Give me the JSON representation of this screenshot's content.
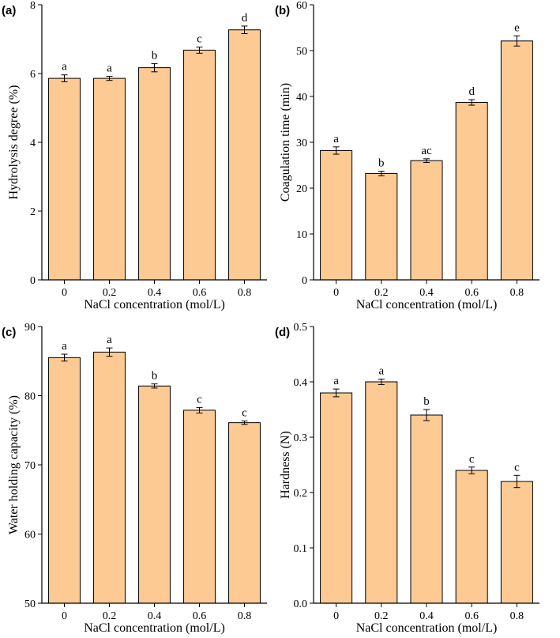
{
  "chart_data": [
    {
      "panel_label": "(a)",
      "type": "bar",
      "categories": [
        "0",
        "0.2",
        "0.4",
        "0.6",
        "0.8"
      ],
      "values": [
        5.86,
        5.86,
        6.17,
        6.68,
        7.27
      ],
      "errors": [
        0.1,
        0.06,
        0.12,
        0.09,
        0.11
      ],
      "sig_labels": [
        "a",
        "a",
        "b",
        "c",
        "d"
      ],
      "xlabel": "NaCl concentration (mol/L)",
      "ylabel": "Hydrolysis degree (%)",
      "ylim": [
        0,
        8
      ],
      "yticks": [
        0,
        2,
        4,
        6,
        8
      ],
      "ytick_labels": [
        "0",
        "2",
        "4",
        "6",
        "8"
      ],
      "bar_color": "#FDCA94"
    },
    {
      "panel_label": "(b)",
      "type": "bar",
      "categories": [
        "0",
        "0.2",
        "0.4",
        "0.6",
        "0.8"
      ],
      "values": [
        28.2,
        23.2,
        26.0,
        38.7,
        52.1
      ],
      "errors": [
        0.8,
        0.5,
        0.4,
        0.6,
        1.1
      ],
      "sig_labels": [
        "a",
        "b",
        "ac",
        "d",
        "e"
      ],
      "xlabel": "NaCl concentration (mol/L)",
      "ylabel": "Coagulation time (min)",
      "ylim": [
        0,
        60
      ],
      "yticks": [
        0,
        10,
        20,
        30,
        40,
        50,
        60
      ],
      "ytick_labels": [
        "0",
        "10",
        "20",
        "30",
        "40",
        "50",
        "60"
      ],
      "bar_color": "#FDCA94"
    },
    {
      "panel_label": "(c)",
      "type": "bar",
      "categories": [
        "0",
        "0.2",
        "0.4",
        "0.6",
        "0.8"
      ],
      "values": [
        85.5,
        86.3,
        81.4,
        77.9,
        76.1
      ],
      "errors": [
        0.5,
        0.6,
        0.3,
        0.4,
        0.25
      ],
      "sig_labels": [
        "a",
        "a",
        "b",
        "c",
        "c"
      ],
      "xlabel": "NaCl concentration (mol/L)",
      "ylabel": "Water holding capacity (%)",
      "ylim": [
        50,
        90
      ],
      "yticks": [
        50,
        60,
        70,
        80,
        90
      ],
      "ytick_labels": [
        "50",
        "60",
        "70",
        "80",
        "90"
      ],
      "bar_color": "#FDCA94"
    },
    {
      "panel_label": "(d)",
      "type": "bar",
      "categories": [
        "0",
        "0.2",
        "0.4",
        "0.6",
        "0.8"
      ],
      "values": [
        0.38,
        0.4,
        0.34,
        0.24,
        0.22
      ],
      "errors": [
        0.007,
        0.005,
        0.01,
        0.006,
        0.011
      ],
      "sig_labels": [
        "a",
        "a",
        "b",
        "c",
        "c"
      ],
      "xlabel": "NaCl concentration (mol/L)",
      "ylabel": "Hardness (N)",
      "ylim": [
        0,
        0.5
      ],
      "yticks": [
        0,
        0.1,
        0.2,
        0.3,
        0.4,
        0.5
      ],
      "ytick_labels": [
        "0.0",
        "0.1",
        "0.2",
        "0.3",
        "0.4",
        "0.5"
      ],
      "bar_color": "#FDCA94"
    }
  ]
}
